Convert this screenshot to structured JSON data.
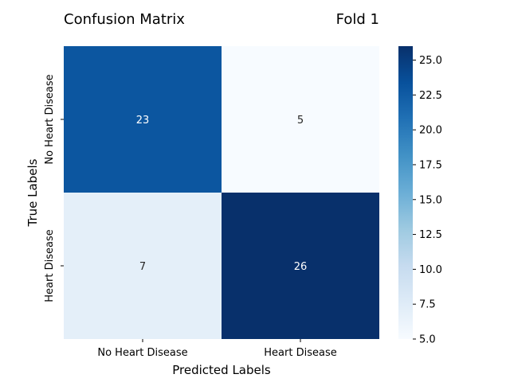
{
  "chart_data": {
    "type": "heatmap",
    "title": "Confusion Matrix",
    "subtitle": "Fold 1",
    "xlabel": "Predicted Labels",
    "ylabel": "True Labels",
    "x_categories": [
      "No Heart Disease",
      "Heart Disease"
    ],
    "y_categories": [
      "No Heart Disease",
      "Heart Disease"
    ],
    "values": [
      [
        23,
        5
      ],
      [
        7,
        26
      ]
    ],
    "colormap": "Blues",
    "colorbar": {
      "range": [
        5,
        26
      ],
      "ticks": [
        "5.0",
        "7.5",
        "10.0",
        "12.5",
        "15.0",
        "17.5",
        "20.0",
        "22.5",
        "25.0"
      ]
    }
  }
}
